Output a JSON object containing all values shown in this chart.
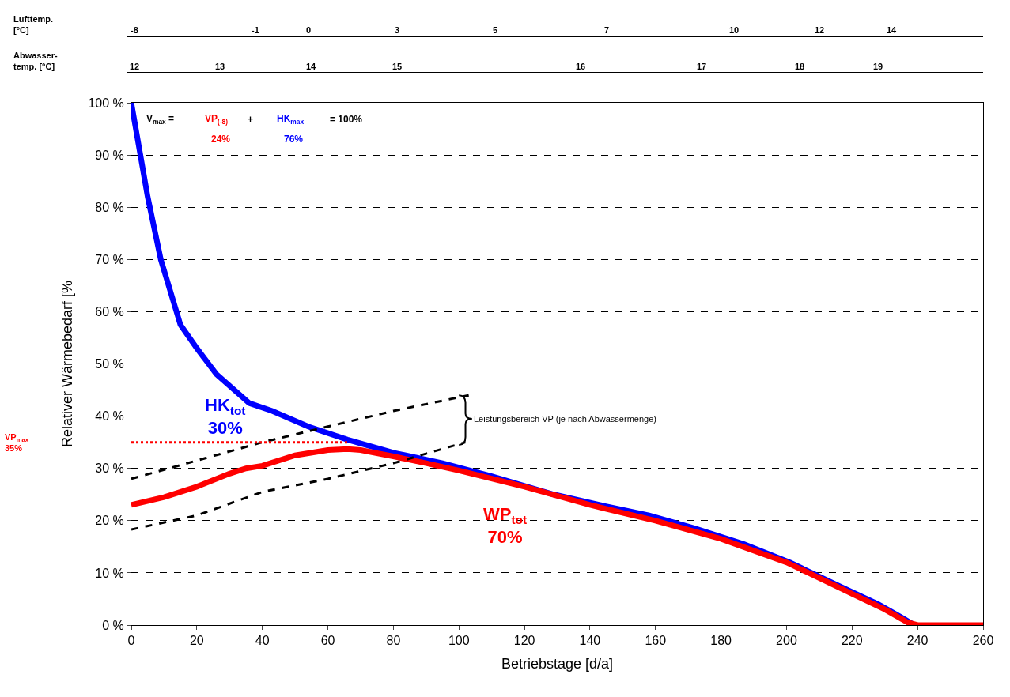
{
  "chart_data": {
    "type": "line",
    "xlabel": "Betriebstage [d/a]",
    "ylabel": "Relativer Wärmebedarf [%",
    "xlim": [
      0,
      260
    ],
    "xticks": [
      0,
      20,
      40,
      60,
      80,
      100,
      120,
      140,
      160,
      180,
      200,
      220,
      240,
      260
    ],
    "ylim": [
      0,
      100
    ],
    "yticks": [
      {
        "value": 0,
        "label": "0 %"
      },
      {
        "value": 10,
        "label": "10 %"
      },
      {
        "value": 20,
        "label": "20 %"
      },
      {
        "value": 30,
        "label": "30 %"
      },
      {
        "value": 40,
        "label": "40 %"
      },
      {
        "value": 50,
        "label": "50 %"
      },
      {
        "value": 60,
        "label": "60 %"
      },
      {
        "value": 70,
        "label": "70 %"
      },
      {
        "value": 80,
        "label": "80 %"
      },
      {
        "value": 90,
        "label": "90 %"
      },
      {
        "value": 100,
        "label": "100 %"
      }
    ],
    "grid": "y",
    "series": [
      {
        "color": "#0000ff",
        "line_style": "solid",
        "x": [
          0,
          5,
          9,
          15,
          20,
          26,
          36,
          43,
          54,
          66,
          80,
          95,
          110,
          129,
          143,
          158,
          172,
          187,
          201,
          216,
          228,
          235,
          239
        ],
        "values": [
          100,
          82,
          70,
          57.5,
          53,
          48,
          42.5,
          41,
          38,
          35.5,
          33,
          31,
          28.5,
          25,
          23,
          21,
          18.5,
          15.5,
          12,
          7.5,
          4,
          1.5,
          0
        ]
      },
      {
        "color": "#ff0000",
        "line_style": "solid",
        "x": [
          0,
          10,
          20,
          30,
          35,
          40,
          50,
          60,
          66,
          70,
          80,
          90,
          100,
          120,
          140,
          160,
          180,
          200,
          220,
          230,
          237,
          240,
          260
        ],
        "values": [
          23,
          24.5,
          26.5,
          29,
          30,
          30.5,
          32.5,
          33.5,
          33.7,
          33.5,
          32.3,
          31,
          29.6,
          26.5,
          23,
          20,
          16.5,
          12,
          6,
          3,
          0.5,
          0,
          0
        ]
      },
      {
        "color": "#000000",
        "line_style": "dashed",
        "x": [
          0,
          20,
          40,
          60,
          80,
          103
        ],
        "values": [
          28,
          31.5,
          35,
          38,
          41,
          44
        ]
      },
      {
        "color": "#000000",
        "line_style": "dashed",
        "x": [
          0,
          20,
          40,
          60,
          80,
          102
        ],
        "values": [
          18.3,
          21,
          25.5,
          28,
          31,
          35
        ]
      },
      {
        "color": "#ff0000",
        "line_style": "dotted",
        "x": [
          0,
          66
        ],
        "values": [
          35,
          35
        ]
      }
    ],
    "annotations": [
      "Lufttemp.\n[°C]",
      "-8",
      "-1",
      "0",
      "3",
      "5",
      "7",
      "10",
      "12",
      "14",
      "Abwasser-\ntemp. [°C]",
      "12",
      "13",
      "14",
      "15",
      "16",
      "17",
      "18",
      "19",
      "V$_{max}$ =",
      "VP$_{(-8)}$",
      "+",
      "HK$_{max}$",
      "= 100%",
      "24%",
      "76%",
      "HK$_{tot}$\n30%",
      "WP$_{tot}$\n70%",
      "Leistungsbereich VP (je nach Abwassermenge)",
      "VP$_{max}$\n35%"
    ]
  }
}
